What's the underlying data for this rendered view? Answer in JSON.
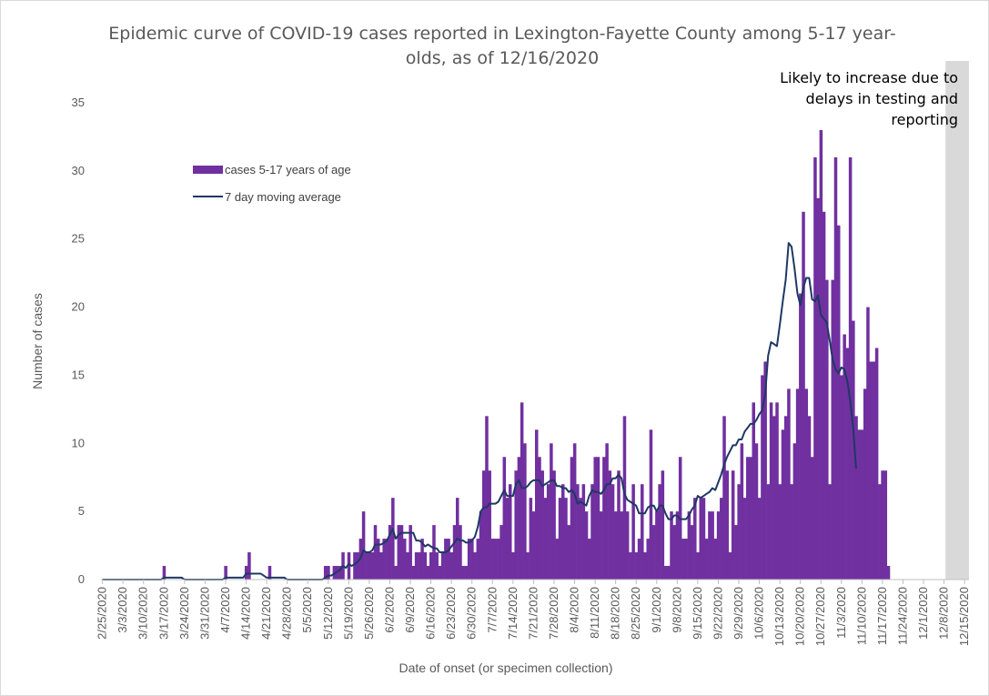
{
  "chart_data": {
    "type": "bar",
    "title_line1": "Epidemic curve of COVID-19 cases reported in Lexington-Fayette County among 5-17 year-",
    "title_line2": "olds, as of 12/16/2020",
    "xlabel": "Date of onset (or specimen collection)",
    "ylabel": "Number of cases",
    "ylim": [
      0,
      35
    ],
    "yticks": [
      0,
      5,
      10,
      15,
      20,
      25,
      30,
      35
    ],
    "x_start": "2/25/2020",
    "x_end": "12/16/2020",
    "xticks": [
      "2/25/2020",
      "3/3/2020",
      "3/10/2020",
      "3/17/2020",
      "3/24/2020",
      "3/31/2020",
      "4/7/2020",
      "4/14/2020",
      "4/21/2020",
      "4/28/2020",
      "5/5/2020",
      "5/12/2020",
      "5/19/2020",
      "5/26/2020",
      "6/2/2020",
      "6/9/2020",
      "6/16/2020",
      "6/23/2020",
      "6/30/2020",
      "7/7/2020",
      "7/14/2020",
      "7/21/2020",
      "7/28/2020",
      "8/4/2020",
      "8/11/2020",
      "8/18/2020",
      "8/25/2020",
      "9/1/2020",
      "9/8/2020",
      "9/15/2020",
      "9/22/2020",
      "9/29/2020",
      "10/6/2020",
      "10/13/2020",
      "10/20/2020",
      "10/27/2020",
      "11/3/2020",
      "11/10/2020",
      "11/17/2020",
      "11/24/2020",
      "12/1/2020",
      "12/8/2020",
      "12/15/2020"
    ],
    "annotation": [
      "Likely to increase due to",
      "delays in testing and",
      "reporting"
    ],
    "shaded_region": {
      "from": "12/9/2020",
      "to": "12/16/2020"
    },
    "grid": false,
    "legend_position": "upper-left",
    "series": [
      {
        "name": "cases 5-17 years of age",
        "kind": "bar",
        "color": "#7030a0",
        "values": [
          0,
          0,
          0,
          0,
          0,
          0,
          0,
          0,
          0,
          0,
          0,
          0,
          0,
          0,
          0,
          0,
          0,
          0,
          0,
          0,
          0,
          1,
          0,
          0,
          0,
          0,
          0,
          0,
          0,
          0,
          0,
          0,
          0,
          0,
          0,
          0,
          0,
          0,
          0,
          0,
          0,
          0,
          1,
          0,
          0,
          0,
          0,
          0,
          0,
          1,
          2,
          0,
          0,
          0,
          0,
          0,
          0,
          1,
          0,
          0,
          0,
          0,
          0,
          0,
          0,
          0,
          0,
          0,
          0,
          0,
          0,
          0,
          0,
          0,
          0,
          0,
          1,
          1,
          0,
          1,
          1,
          1,
          2,
          0,
          2,
          0,
          2,
          2,
          3,
          5,
          2,
          2,
          2,
          4,
          3,
          2,
          3,
          3,
          4,
          6,
          1,
          4,
          4,
          3,
          2,
          4,
          1,
          2,
          2,
          3,
          2,
          1,
          2,
          4,
          2,
          1,
          2,
          3,
          3,
          2,
          4,
          6,
          4,
          1,
          1,
          3,
          3,
          2,
          3,
          5,
          8,
          12,
          8,
          3,
          3,
          3,
          4,
          9,
          6,
          7,
          2,
          8,
          9,
          13,
          10,
          2,
          6,
          5,
          11,
          9,
          8,
          6,
          7,
          10,
          8,
          3,
          6,
          7,
          6,
          4,
          9,
          10,
          7,
          6,
          7,
          5,
          3,
          7,
          9,
          9,
          5,
          9,
          10,
          8,
          7,
          5,
          8,
          5,
          12,
          5,
          2,
          7,
          2,
          3,
          7,
          2,
          3,
          11,
          4,
          5,
          7,
          8,
          1,
          1,
          5,
          4,
          5,
          9,
          3,
          3,
          5,
          4,
          6,
          2,
          6,
          6,
          3,
          5,
          5,
          3,
          5,
          6,
          12,
          8,
          2,
          8,
          4,
          7,
          10,
          6,
          9,
          9,
          13,
          10,
          6,
          15,
          16,
          7,
          13,
          12,
          13,
          7,
          11,
          12,
          14,
          7,
          10,
          14,
          21,
          27,
          14,
          12,
          9,
          31,
          28,
          33,
          27,
          22,
          7,
          22,
          31,
          26,
          15,
          18,
          17,
          31,
          19,
          12,
          11,
          11,
          14,
          20,
          16,
          16,
          17,
          7,
          8,
          8,
          1
        ]
      },
      {
        "name": "7 day moving average",
        "kind": "line",
        "color": "#1f3864",
        "values": [
          0,
          0,
          0,
          0,
          0,
          0,
          0,
          0,
          0,
          0,
          0,
          0,
          0,
          0,
          0,
          0,
          0,
          0,
          0,
          0,
          0,
          0.14,
          0.14,
          0.14,
          0.14,
          0.14,
          0.14,
          0.14,
          0,
          0,
          0,
          0,
          0,
          0,
          0,
          0,
          0,
          0,
          0,
          0,
          0,
          0,
          0.14,
          0.14,
          0.14,
          0.14,
          0.14,
          0.14,
          0.14,
          0.43,
          0.43,
          0.43,
          0.43,
          0.43,
          0.43,
          0.29,
          0.14,
          0.14,
          0.14,
          0.14,
          0.14,
          0.14,
          0.14,
          0,
          0,
          0,
          0,
          0,
          0,
          0,
          0,
          0,
          0,
          0,
          0,
          0,
          0.14,
          0.29,
          0.29,
          0.43,
          0.57,
          0.71,
          1,
          0.86,
          1.14,
          1,
          1.14,
          1.29,
          1.57,
          2.14,
          2,
          2,
          2.14,
          2.57,
          2.57,
          2.57,
          2.71,
          2.86,
          3.29,
          3.71,
          3,
          3.29,
          3.43,
          3.43,
          3.43,
          3.43,
          3.43,
          2.86,
          2.86,
          2.71,
          2.43,
          2.57,
          2.43,
          2.29,
          2.29,
          2,
          2,
          2,
          2.14,
          2.43,
          2.71,
          3,
          2.86,
          2.86,
          2.71,
          2.71,
          2.86,
          3.14,
          3.86,
          5,
          5.29,
          5.29,
          5.57,
          5.57,
          5.57,
          5.71,
          6.14,
          6.57,
          6.14,
          6.14,
          6.14,
          7,
          7.29,
          6.71,
          6.71,
          6.86,
          7.14,
          7.29,
          7.29,
          7.29,
          6.86,
          7,
          7.14,
          7.29,
          7.29,
          6.86,
          6.86,
          6.71,
          6.71,
          6.43,
          6.57,
          6.29,
          5.57,
          5.71,
          5.57,
          5.43,
          6.14,
          6.57,
          6.43,
          6.43,
          6.29,
          6.57,
          7,
          7,
          7.43,
          7.43,
          7.71,
          7.43,
          6.29,
          5.86,
          5.71,
          5.57,
          5.43,
          4.86,
          4.86,
          4.86,
          5.29,
          5.43,
          5.43,
          5,
          5.43,
          5.43,
          4.86,
          4.43,
          4.43,
          4.71,
          4.71,
          4.43,
          4.43,
          4.43,
          4.71,
          5.14,
          5.43,
          6.14,
          6,
          6.14,
          6.29,
          6.43,
          6.71,
          6.57,
          7.14,
          7.71,
          8.43,
          9,
          9.43,
          9.86,
          9.86,
          10.29,
          10.29,
          10.86,
          11.14,
          11.43,
          11.43,
          11.71,
          12.14,
          12.43,
          13.57,
          16.43,
          17.43,
          17.29,
          17.14,
          18.71,
          20.43,
          22,
          24.71,
          24.43,
          22.86,
          21,
          20.14,
          21.43,
          22.14,
          22.14,
          20.57,
          20.43,
          20.86,
          19.43,
          19.14,
          18.86,
          17.57,
          16.14,
          15.43,
          15.14,
          15.57,
          15.43,
          14.57,
          13.14,
          11.14,
          8.14
        ]
      }
    ]
  }
}
